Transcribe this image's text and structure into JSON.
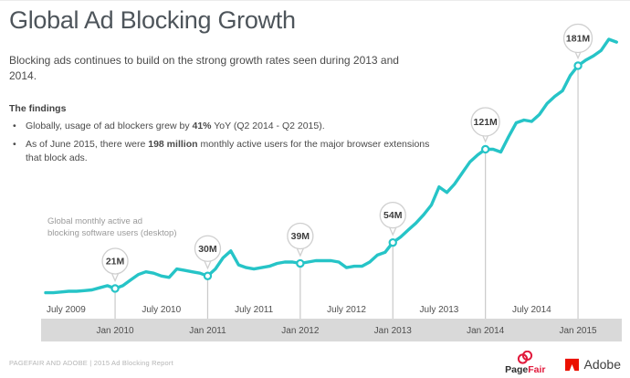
{
  "header": {
    "title": "Global Ad Blocking Growth",
    "subtitle": "Blocking ads continues to build on the strong growth rates seen during 2013 and\n2014."
  },
  "findings": {
    "heading": "The findings",
    "items": [
      {
        "segments": [
          {
            "text": "Globally, usage of ad blockers grew by ",
            "bold": false
          },
          {
            "text": "41%",
            "bold": true
          },
          {
            "text": " YoY (Q2 2014 - Q2 2015).",
            "bold": false
          }
        ]
      },
      {
        "segments": [
          {
            "text": "As of June 2015, there were ",
            "bold": false
          },
          {
            "text": "198 million",
            "bold": true
          },
          {
            "text": " monthly active users for the major browser extensions\nthat block ads.",
            "bold": false
          }
        ]
      }
    ]
  },
  "chart_data": {
    "type": "line",
    "note": "Global monthly active ad\nblocking software users (desktop)",
    "unit": "millions of monthly active users",
    "x_range": [
      "Apr 2009",
      "Jun 2015"
    ],
    "ylim": [
      0,
      210
    ],
    "grid": false,
    "monthly_values": [
      18,
      18,
      18.5,
      19,
      19,
      19.5,
      20,
      21.5,
      23,
      21,
      23,
      27,
      31,
      33,
      32,
      30,
      29,
      35,
      34,
      33,
      32,
      30,
      35,
      43,
      48,
      38,
      36,
      35,
      36,
      37,
      39,
      40,
      40,
      39,
      40,
      41,
      41,
      41,
      40,
      36,
      37,
      37,
      40,
      45,
      47,
      54,
      58,
      63,
      68,
      74,
      81,
      94,
      90,
      96,
      104,
      112,
      117,
      121,
      121,
      119,
      130,
      140,
      142,
      141,
      146,
      154,
      159,
      163,
      174,
      181,
      185,
      188,
      192,
      200,
      198
    ],
    "callouts": [
      {
        "label": "21M",
        "value": 21,
        "month": "Jan 2010",
        "index": 9
      },
      {
        "label": "30M",
        "value": 30,
        "month": "Jan 2011",
        "index": 21
      },
      {
        "label": "39M",
        "value": 39,
        "month": "Jan 2012",
        "index": 33
      },
      {
        "label": "54M",
        "value": 54,
        "month": "Jan 2013",
        "index": 45
      },
      {
        "label": "121M",
        "value": 121,
        "month": "Jan 2014",
        "index": 57
      },
      {
        "label": "181M",
        "value": 181,
        "month": "Jan 2015",
        "index": 69
      }
    ],
    "x_axis": {
      "july_labels": [
        "July 2009",
        "July 2010",
        "July 2011",
        "July 2012",
        "July 2013",
        "July 2014"
      ],
      "jan_labels": [
        "Jan 2010",
        "Jan 2011",
        "Jan 2012",
        "Jan 2013",
        "Jan 2014",
        "Jan 2015"
      ]
    },
    "colors": {
      "line": "#26c4c7",
      "band": "#d9d9d9",
      "drop_line": "#c9c9c9",
      "callout_border": "#cfcfcf",
      "callout_text": "#3d3d3d",
      "label": "#4f4f4f",
      "note": "#9a9a9a"
    }
  },
  "footer": {
    "credit": "PAGEFAIR AND ADOBE | 2015 Ad Blocking Report",
    "pagefair": {
      "dark": "Page",
      "red": "Fair"
    },
    "adobe_label": "Adobe",
    "brand_red": "#e11a3c",
    "adobe_red": "#eb1000"
  }
}
